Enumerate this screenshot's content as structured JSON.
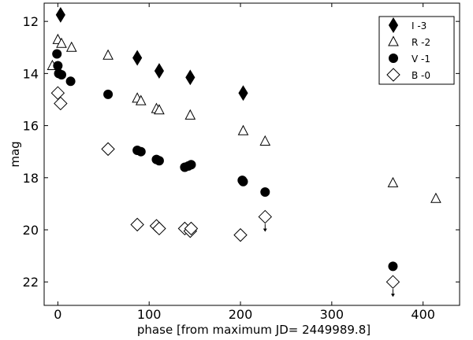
{
  "chart_data": {
    "type": "scatter",
    "xlabel": "phase [from maximum JD= 2449989.8]",
    "ylabel": "mag",
    "xlim": [
      -15,
      440
    ],
    "ylim": [
      22.9,
      11.3
    ],
    "y_inverted": true,
    "xticks": [
      0,
      100,
      200,
      300,
      400
    ],
    "yticks": [
      12,
      14,
      16,
      18,
      20,
      22
    ],
    "grid": false,
    "legend_position": "top-right",
    "series": [
      {
        "name": "I  -3",
        "marker": "diamond-filled",
        "color": "#000000",
        "points": [
          [
            3,
            11.75
          ],
          [
            87,
            13.4
          ],
          [
            111,
            13.9
          ],
          [
            145,
            14.15
          ],
          [
            203,
            14.75
          ]
        ]
      },
      {
        "name": "R -2",
        "marker": "triangle-open",
        "color": "#000000",
        "points": [
          [
            -6,
            13.7
          ],
          [
            0,
            12.7
          ],
          [
            4,
            12.85
          ],
          [
            15,
            13.0
          ],
          [
            55,
            13.3
          ],
          [
            87,
            14.95
          ],
          [
            91,
            15.05
          ],
          [
            108,
            15.35
          ],
          [
            111,
            15.4
          ],
          [
            145,
            15.6
          ],
          [
            203,
            16.2
          ],
          [
            227,
            16.6
          ],
          [
            367,
            18.2
          ],
          [
            414,
            18.8
          ]
        ]
      },
      {
        "name": "V -1",
        "marker": "circle-filled",
        "color": "#000000",
        "points": [
          [
            -1,
            13.25
          ],
          [
            0,
            13.7
          ],
          [
            1,
            14.0
          ],
          [
            4,
            14.05
          ],
          [
            14,
            14.3
          ],
          [
            55,
            14.8
          ],
          [
            87,
            16.95
          ],
          [
            91,
            17.0
          ],
          [
            108,
            17.3
          ],
          [
            111,
            17.35
          ],
          [
            139,
            17.6
          ],
          [
            143,
            17.55
          ],
          [
            146,
            17.5
          ],
          [
            202,
            18.1
          ],
          [
            203,
            18.15
          ],
          [
            227,
            18.55
          ],
          [
            367,
            21.4
          ]
        ]
      },
      {
        "name": "B -0",
        "marker": "diamond-open",
        "color": "#000000",
        "points": [
          [
            0,
            14.75
          ],
          [
            3,
            15.15
          ],
          [
            55,
            16.9
          ],
          [
            87,
            19.8
          ],
          [
            108,
            19.85
          ],
          [
            111,
            19.95
          ],
          [
            139,
            19.95
          ],
          [
            145,
            20.05
          ],
          [
            146,
            19.95
          ],
          [
            200,
            20.2
          ],
          [
            227,
            19.5
          ],
          [
            367,
            22.0
          ]
        ]
      }
    ],
    "upper_limits": [
      [
        227,
        19.5
      ],
      [
        367,
        22.0
      ]
    ]
  }
}
